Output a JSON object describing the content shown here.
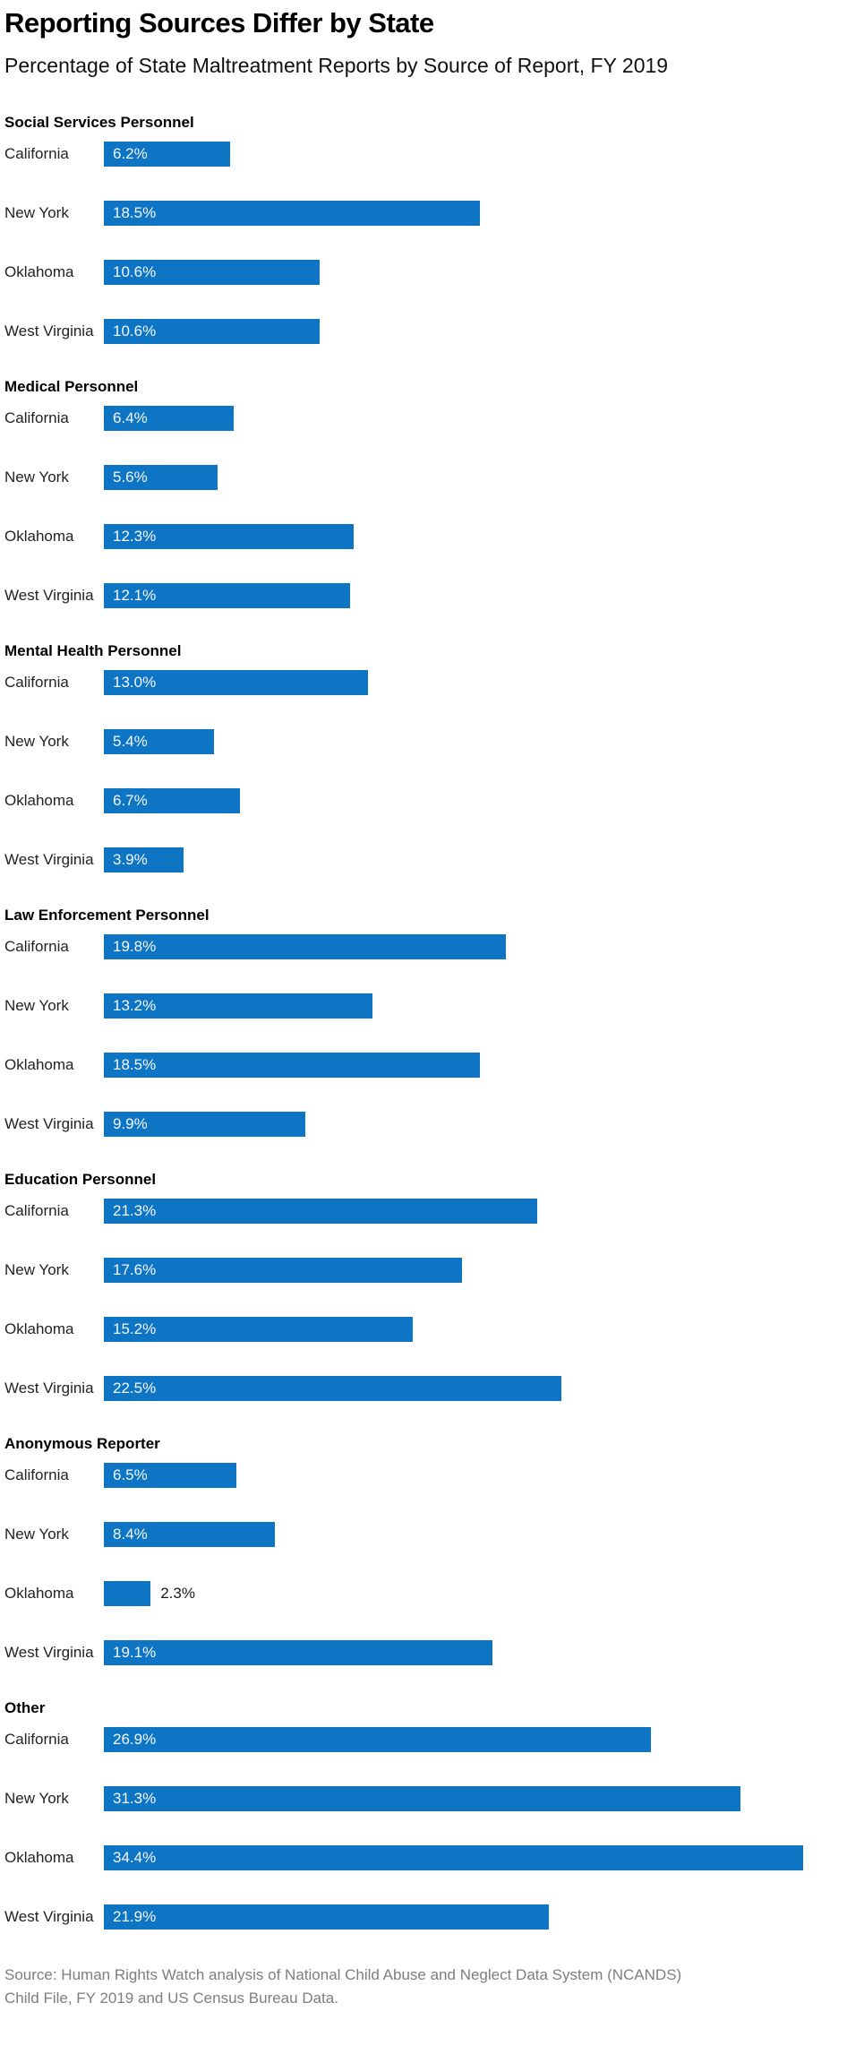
{
  "header": {
    "title": "Reporting Sources Differ by State",
    "subtitle": "Percentage of State Maltreatment Reports by Source of Report, FY 2019"
  },
  "source": {
    "line1": "Source: Human Rights Watch analysis of National Child Abuse and Neglect Data System (NCANDS)",
    "line2": "Child File, FY 2019 and US Census Bureau Data."
  },
  "colors": {
    "bar": "#0e74c4",
    "value_label_inside": "#f3f8fd",
    "value_label_outside": "#1a1a1a",
    "source_text": "#7e7e7e"
  },
  "chart_data": {
    "type": "bar",
    "orientation": "horizontal",
    "unit": "%",
    "title": "Reporting Sources Differ by State",
    "subtitle": "Percentage of State Maltreatment Reports by Source of Report, FY 2019",
    "xlabel": "",
    "ylabel": "",
    "axis_max": 36.3,
    "grid": false,
    "legend": "none",
    "value_labels": "on-bar, outside when bar too short",
    "categories": [
      "California",
      "New York",
      "Oklahoma",
      "West Virginia"
    ],
    "groups": [
      {
        "label": "Social Services Personnel",
        "values": [
          6.2,
          18.5,
          10.6,
          10.6
        ]
      },
      {
        "label": "Medical Personnel",
        "values": [
          6.4,
          5.6,
          12.3,
          12.1
        ]
      },
      {
        "label": "Mental Health Personnel",
        "values": [
          13.0,
          5.4,
          6.7,
          3.9
        ]
      },
      {
        "label": "Law Enforcement Personnel",
        "values": [
          19.8,
          13.2,
          18.5,
          9.9
        ]
      },
      {
        "label": "Education Personnel",
        "values": [
          21.3,
          17.6,
          15.2,
          22.5
        ]
      },
      {
        "label": "Anonymous Reporter",
        "values": [
          6.5,
          8.4,
          2.3,
          19.1
        ]
      },
      {
        "label": "Other",
        "values": [
          26.9,
          31.3,
          34.4,
          21.9
        ]
      }
    ]
  }
}
